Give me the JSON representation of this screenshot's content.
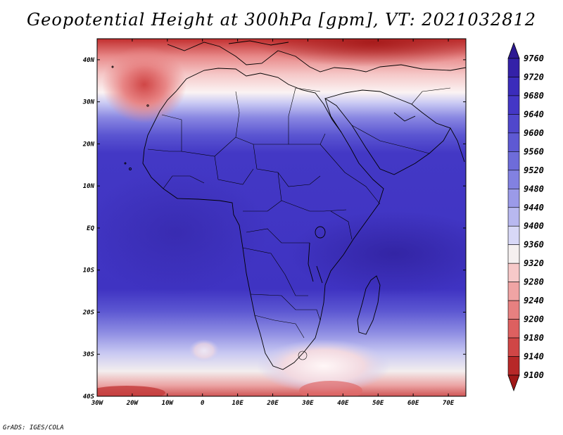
{
  "title": "Geopotential Height at 300hPa [gpm], VT: 2021032812",
  "credit": "GrADS: IGES/COLA",
  "map": {
    "lon_labels": [
      "30W",
      "20W",
      "10W",
      "0",
      "10E",
      "20E",
      "30E",
      "40E",
      "50E",
      "60E",
      "70E"
    ],
    "lat_labels": [
      "40N",
      "30N",
      "20N",
      "10N",
      "EQ",
      "10S",
      "20S",
      "30S",
      "40S"
    ]
  },
  "colorbar": {
    "levels": [
      "9760",
      "9720",
      "9680",
      "9640",
      "9600",
      "9560",
      "9520",
      "9480",
      "9440",
      "9400",
      "9360",
      "9320",
      "9280",
      "9240",
      "9200",
      "9180",
      "9140",
      "9100"
    ],
    "colors": [
      "#2d1a93",
      "#3421a8",
      "#3b2cbb",
      "#4437c6",
      "#5047cc",
      "#5e59d3",
      "#6e6cd9",
      "#8281e1",
      "#9b9ae8",
      "#b8b8f0",
      "#d8d8f7",
      "#f5f0f0",
      "#f7c9c9",
      "#f0a4a4",
      "#e78080",
      "#dd6060",
      "#d04646",
      "#b72828",
      "#a01818"
    ]
  }
}
